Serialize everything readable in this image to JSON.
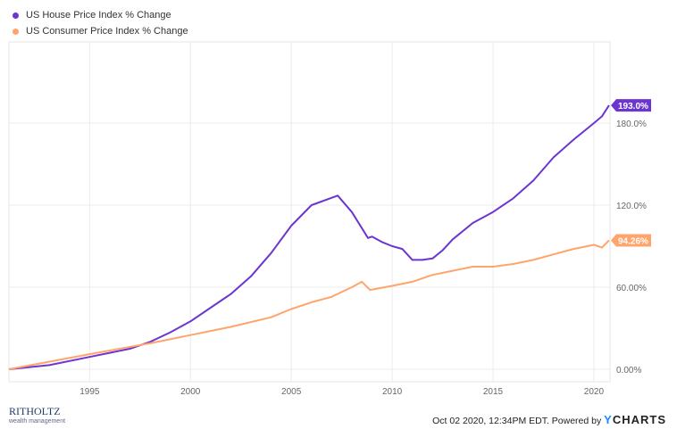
{
  "chart_data": {
    "type": "line",
    "xlim": [
      1991.0,
      2020.8
    ],
    "ylim": [
      -5,
      215
    ],
    "x_ticks": [
      1995,
      2000,
      2005,
      2010,
      2015,
      2020
    ],
    "y_ticks": [
      {
        "v": 0,
        "label": "0.00%"
      },
      {
        "v": 60,
        "label": "60.00%"
      },
      {
        "v": 120,
        "label": "120.0%"
      },
      {
        "v": 180,
        "label": "180.0%"
      }
    ],
    "grid": true,
    "legend_placement": "top-left",
    "series": [
      {
        "name": "US House Price Index % Change",
        "color": "#6c35d0",
        "end_label": "193.0%",
        "x": [
          1991,
          1993,
          1995,
          1997,
          1998,
          1999,
          2000,
          2001,
          2002,
          2003,
          2004,
          2005,
          2006,
          2007.3,
          2008,
          2008.8,
          2009,
          2009.5,
          2010,
          2010.5,
          2011,
          2011.5,
          2012,
          2012.5,
          2013,
          2014,
          2015,
          2016,
          2017,
          2018,
          2019,
          2020,
          2020.4,
          2020.75
        ],
        "y": [
          0,
          3,
          9,
          15,
          20,
          27,
          35,
          45,
          55,
          68,
          85,
          105,
          120,
          127,
          115,
          96,
          97,
          93,
          90,
          88,
          80,
          80,
          81,
          87,
          95,
          107,
          115,
          125,
          138,
          155,
          168,
          180,
          185,
          193
        ]
      },
      {
        "name": "US Consumer Price Index % Change",
        "color": "#ffa46b",
        "end_label": "94.26%",
        "x": [
          1991,
          1995,
          1998,
          2000,
          2002,
          2004,
          2005,
          2006,
          2007,
          2008,
          2008.5,
          2008.9,
          2010,
          2011,
          2012,
          2013,
          2014,
          2015,
          2016,
          2017,
          2018,
          2019,
          2020,
          2020.4,
          2020.75
        ],
        "y": [
          0,
          11,
          19,
          25,
          31,
          38,
          44,
          49,
          53,
          60,
          64,
          58,
          61,
          64,
          69,
          72,
          75,
          75,
          77,
          80,
          84,
          88,
          91,
          89,
          94.26
        ]
      }
    ]
  },
  "footer": {
    "timestamp": "Oct 02 2020, 12:34PM EDT. Powered by",
    "brand_y": "Y",
    "brand_rest": "CHARTS"
  },
  "logo": {
    "name": "RITHOLTZ",
    "sub": "wealth management"
  }
}
